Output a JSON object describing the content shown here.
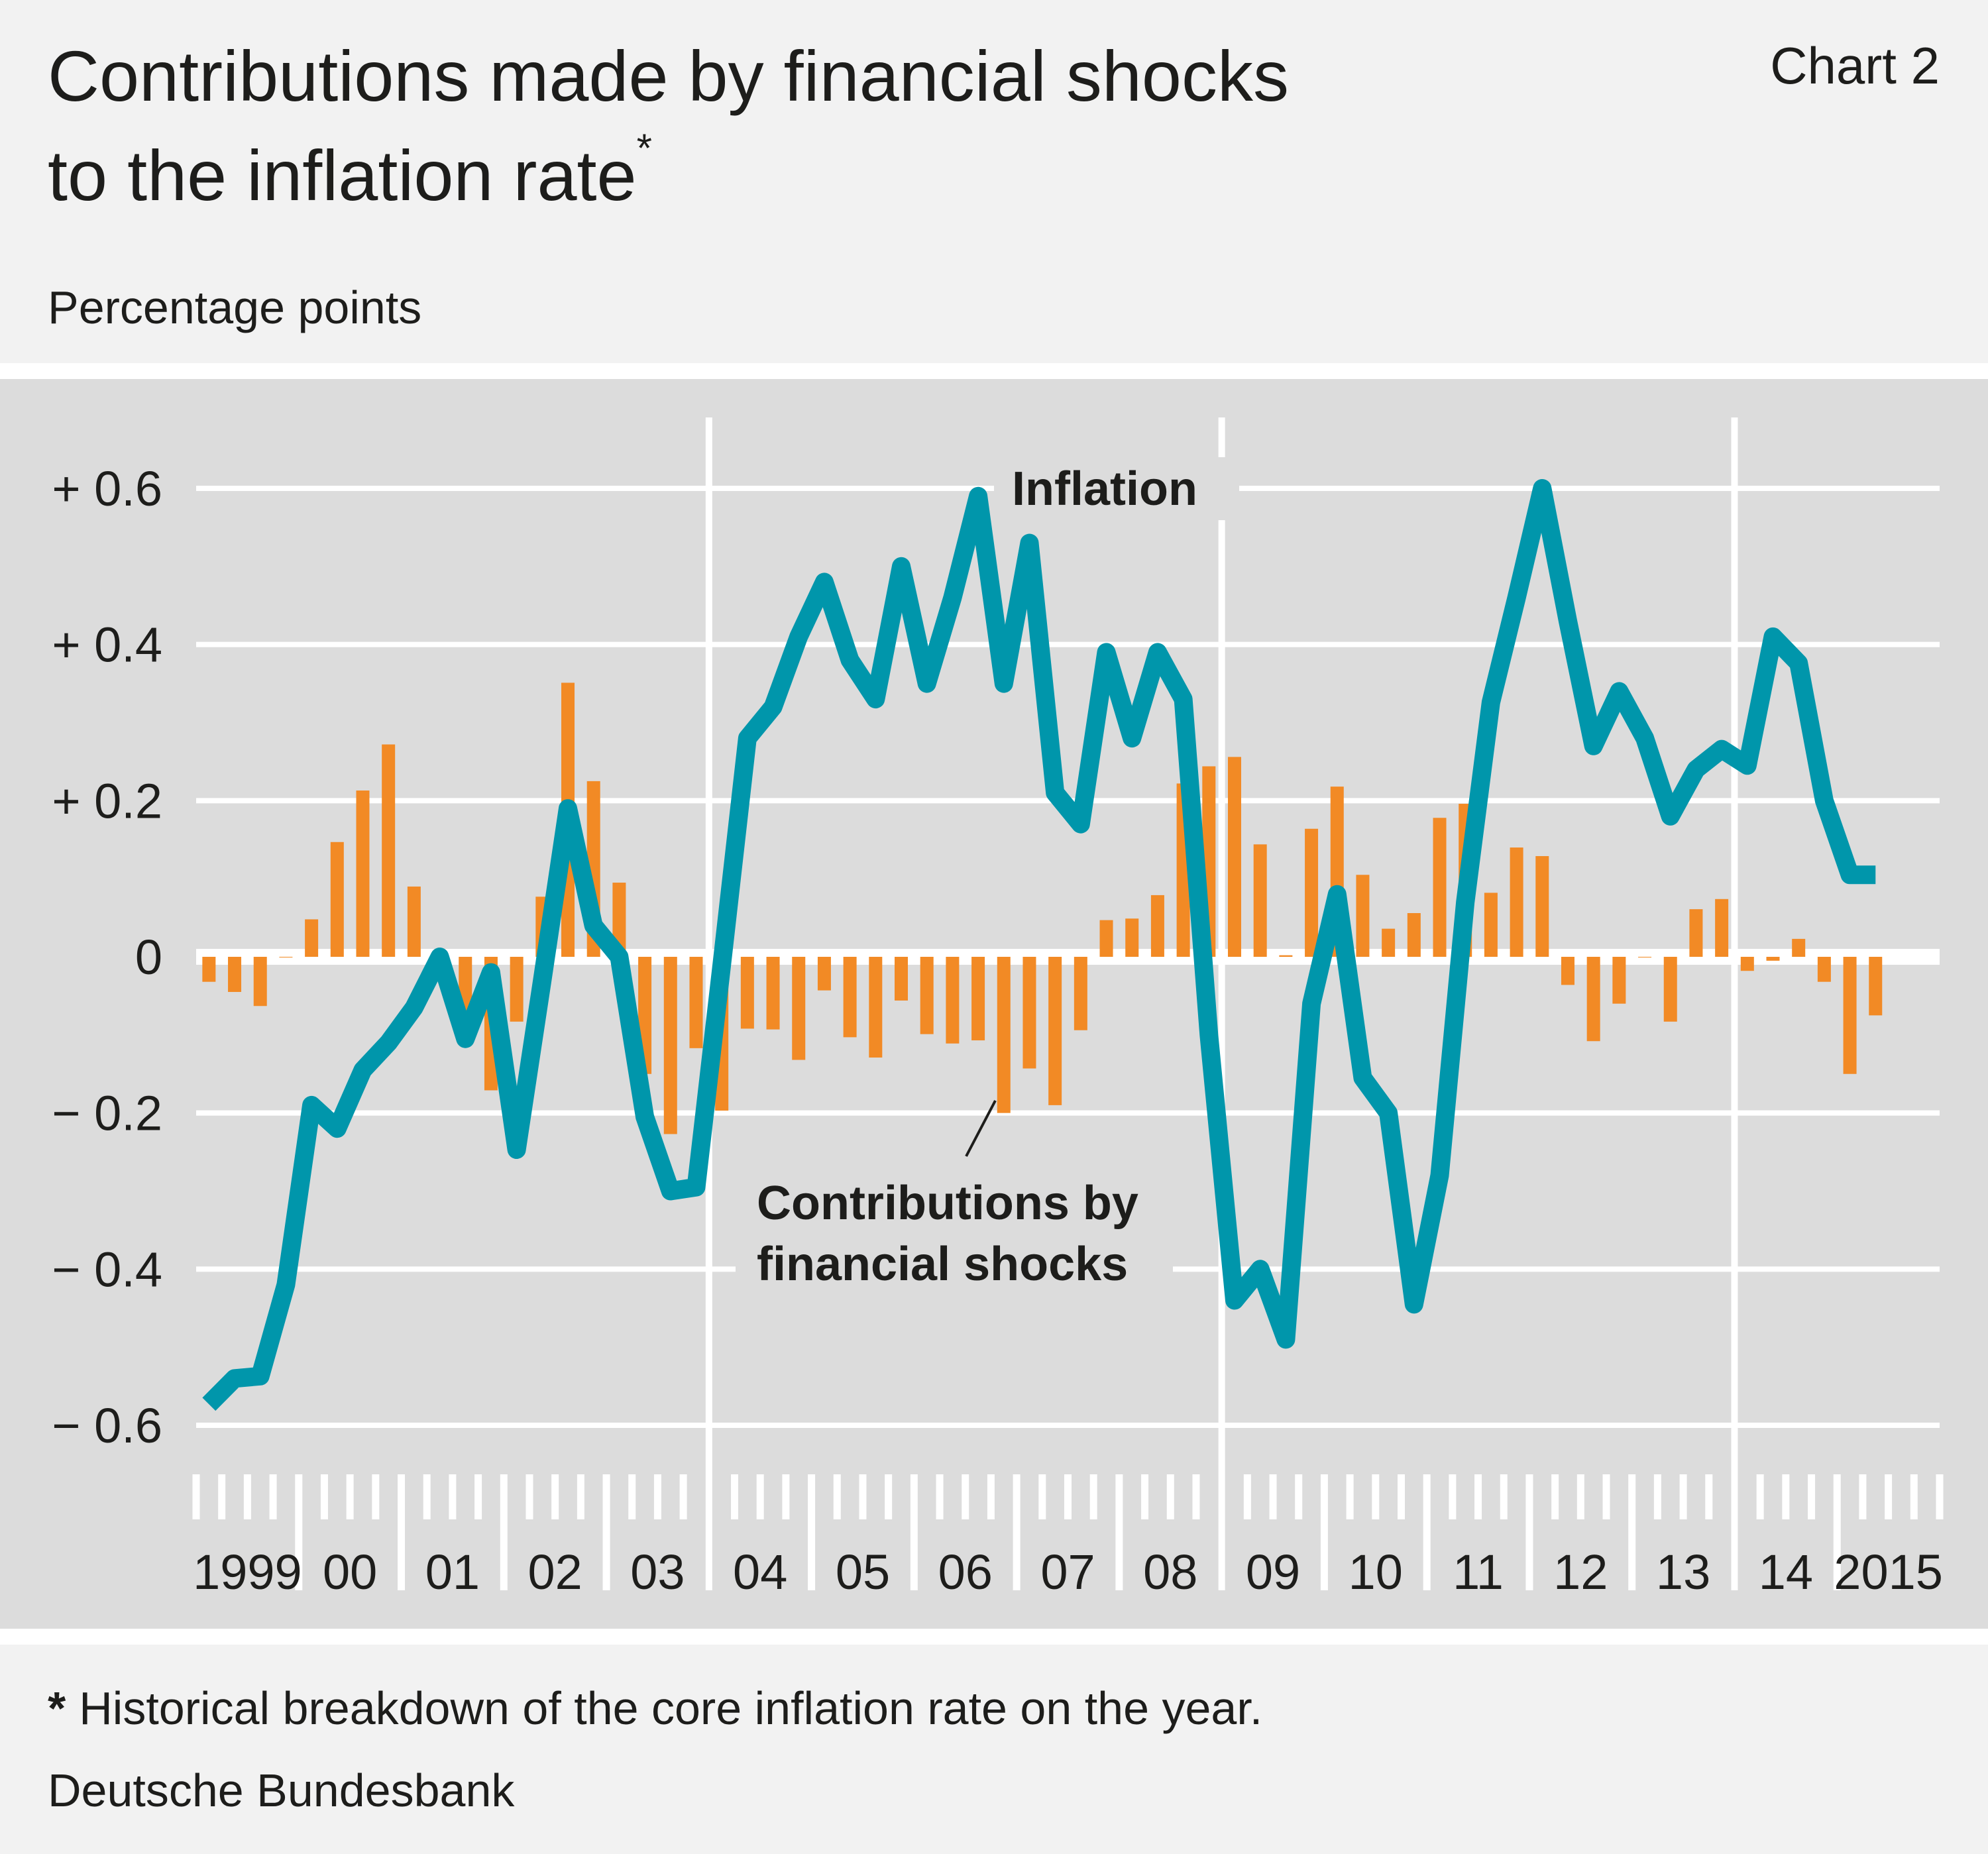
{
  "header": {
    "title_line1": "Contributions made by financial shocks",
    "title_line2": "to the inflation rate",
    "title_marker": "*",
    "chart_number": "Chart 2",
    "unit": "Percentage points"
  },
  "footer": {
    "note_marker": "*",
    "note": "Historical breakdown of the core inflation rate on the year.",
    "source": "Deutsche Bundesbank"
  },
  "colors": {
    "header_bg": "#f2f2f2",
    "plot_bg": "#dcdcdc",
    "grid": "#ffffff",
    "inflation": "#0096ab",
    "contributions": "#f28a25",
    "text": "#1d1d1b"
  },
  "chart_data": {
    "type": "bar+line",
    "title": "Contributions made by financial shocks to the inflation rate*",
    "ylabel": "Percentage points",
    "ylim": [
      -0.6,
      0.6
    ],
    "yticks": [
      0.6,
      0.4,
      0.2,
      0,
      -0.2,
      -0.4,
      -0.6
    ],
    "ytick_labels": [
      "+ 0.6",
      "+ 0.4",
      "+ 0.2",
      "0",
      "− 0.2",
      "− 0.4",
      "− 0.6"
    ],
    "xlim": [
      "1999-Q1",
      "2015-Q4"
    ],
    "xtick_labels": [
      "1999",
      "00",
      "01",
      "02",
      "03",
      "04",
      "05",
      "06",
      "07",
      "08",
      "09",
      "10",
      "11",
      "12",
      "13",
      "14",
      "2015"
    ],
    "grid": true,
    "frequency": "quarterly",
    "start": "1999-Q1",
    "annotations": {
      "inflation": "Inflation",
      "contributions_line1": "Contributions by",
      "contributions_line2": "financial shocks"
    },
    "series": [
      {
        "name": "Contributions by financial shocks",
        "type": "bar",
        "color": "#f28a25",
        "values": [
          -0.032,
          -0.045,
          -0.063,
          0,
          0.048,
          0.147,
          0.213,
          0.272,
          0.09,
          -0.03,
          -0.111,
          -0.171,
          -0.083,
          0.077,
          0.351,
          0.225,
          0.095,
          -0.15,
          -0.227,
          -0.117,
          -0.197,
          -0.092,
          -0.093,
          -0.132,
          -0.043,
          -0.103,
          -0.129,
          -0.056,
          -0.099,
          -0.111,
          -0.107,
          -0.2,
          -0.143,
          -0.19,
          -0.094,
          0.047,
          0.049,
          0.079,
          0.222,
          0.244,
          0.256,
          0.144,
          0.002,
          0.164,
          0.218,
          0.105,
          0.036,
          0.056,
          0.178,
          0.196,
          0.082,
          0.14,
          0.129,
          -0.036,
          -0.108,
          -0.06,
          0,
          -0.083,
          0.061,
          0.074,
          -0.018,
          -0.005,
          0.023,
          -0.032,
          -0.15,
          -0.075
        ]
      },
      {
        "name": "Inflation",
        "type": "line",
        "color": "#0096ab",
        "values": [
          -0.573,
          -0.54,
          -0.537,
          -0.42,
          -0.19,
          -0.22,
          -0.145,
          -0.11,
          -0.065,
          0.0,
          -0.105,
          -0.02,
          -0.247,
          -0.03,
          0.19,
          0.04,
          0.0,
          -0.205,
          -0.3,
          -0.295,
          -0.01,
          0.28,
          0.32,
          0.41,
          0.48,
          0.38,
          0.33,
          0.5,
          0.35,
          0.46,
          0.59,
          0.35,
          0.53,
          0.21,
          0.17,
          0.39,
          0.28,
          0.39,
          0.33,
          -0.1,
          -0.44,
          -0.4,
          -0.49,
          -0.06,
          0.08,
          -0.155,
          -0.2,
          -0.445,
          -0.28,
          0.07,
          0.326,
          0.46,
          0.6,
          0.43,
          0.27,
          0.34,
          0.28,
          0.18,
          0.24,
          0.266,
          0.245,
          0.41,
          0.376,
          0.2,
          0.105,
          0.105
        ]
      }
    ]
  }
}
